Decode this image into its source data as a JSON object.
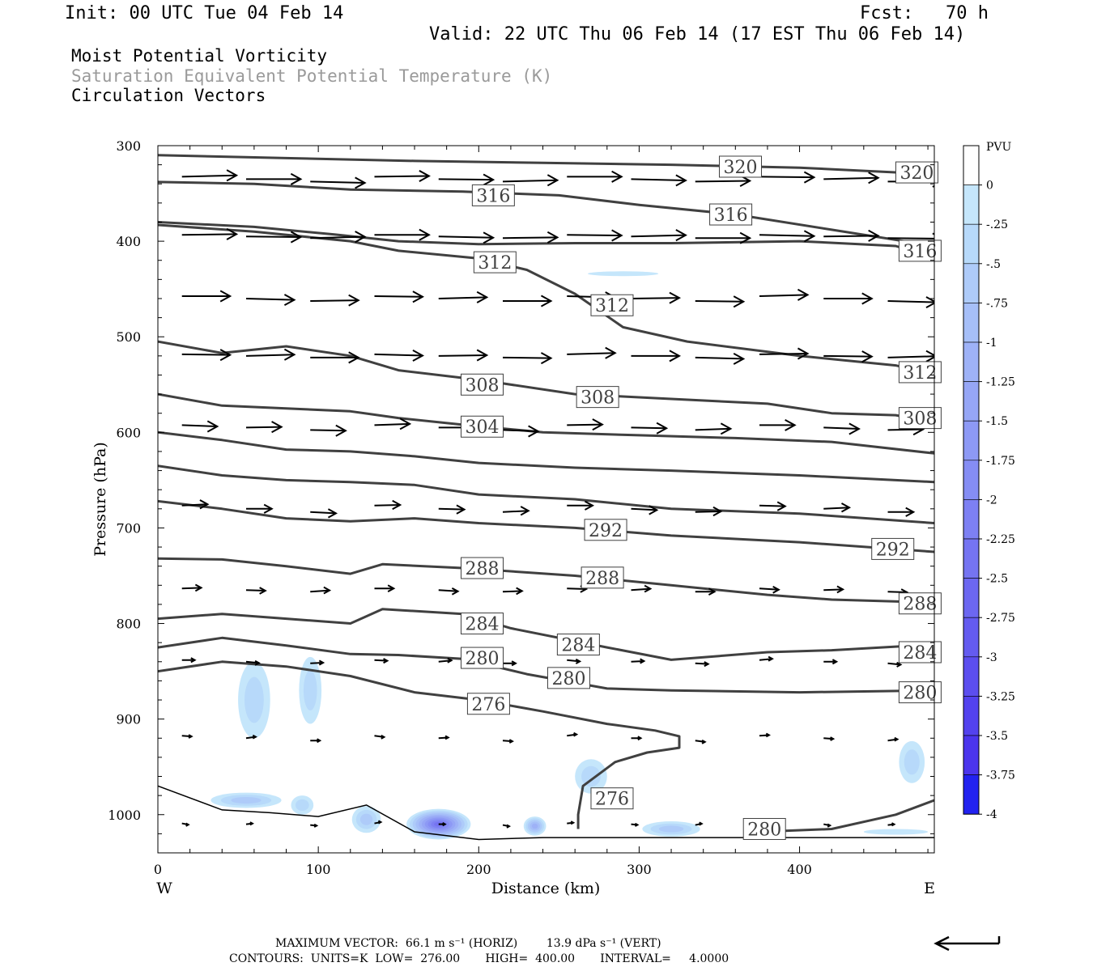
{
  "header": {
    "init": "Init: 00 UTC Tue 04 Feb 14",
    "fcst": "Fcst:   70 h",
    "valid": "Valid: 22 UTC Thu 06 Feb 14 (17 EST Thu 06 Feb 14)",
    "field1": "Moist Potential Vorticity",
    "field2": "Saturation Equivalent Potential Temperature (K)",
    "field3": "Circulation Vectors"
  },
  "axes": {
    "ylabel": "Pressure (hPa)",
    "xlabel": "Distance (km)",
    "west": "W",
    "east": "E"
  },
  "colorbar": {
    "unit": "PVU",
    "labels": [
      "0",
      "-.25",
      "-.5",
      "-.75",
      "-1",
      "-1.25",
      "-1.5",
      "-1.75",
      "-2",
      "-2.25",
      "-2.5",
      "-2.75",
      "-3",
      "-3.25",
      "-3.5",
      "-3.75",
      "-4"
    ],
    "colors": [
      "#ffffff",
      "#c5e6fb",
      "#b7d9fa",
      "#aecbf9",
      "#a6bff8",
      "#9eb2f7",
      "#96a6f6",
      "#8d99f5",
      "#858df4",
      "#7d80f3",
      "#7574f2",
      "#6c67f1",
      "#645bf0",
      "#5c4eef",
      "#5342ee",
      "#4b35ed",
      "#2222f0"
    ]
  },
  "footer": {
    "line1": "MAXIMUM VECTOR:  66.1 m s⁻¹ (HORIZ)        13.9 dPa s⁻¹ (VERT)",
    "line2": "CONTOURS:  UNITS=K  LOW=  276.00       HIGH=  400.00       INTERVAL=     4.0000"
  },
  "chart_data": {
    "type": "contour",
    "title": "Moist Potential Vorticity / Saturation Equivalent Potential Temperature (K) / Circulation Vectors",
    "xlabel": "Distance (km)",
    "ylabel": "Pressure (hPa)",
    "xlim": [
      0,
      484
    ],
    "ylim": [
      1040,
      300
    ],
    "x_ticks": [
      0,
      100,
      200,
      300,
      400
    ],
    "y_ticks": [
      300,
      400,
      500,
      600,
      700,
      800,
      900,
      1000
    ],
    "contour_units": "K",
    "contour_low": 276,
    "contour_high": 400,
    "contour_interval": 4,
    "isentropes": [
      {
        "theta": 320,
        "points": [
          [
            0,
            310
          ],
          [
            80,
            313
          ],
          [
            160,
            316
          ],
          [
            240,
            318
          ],
          [
            320,
            320
          ],
          [
            400,
            323
          ],
          [
            484,
            330
          ]
        ],
        "labels": [
          [
            350,
            322
          ],
          [
            460,
            328
          ]
        ]
      },
      {
        "theta": 316,
        "points": [
          [
            0,
            338
          ],
          [
            60,
            340
          ],
          [
            120,
            346
          ],
          [
            190,
            348
          ],
          [
            250,
            352
          ],
          [
            300,
            362
          ],
          [
            360,
            372
          ],
          [
            420,
            388
          ],
          [
            484,
            405
          ]
        ],
        "labels": [
          [
            196,
            352
          ],
          [
            344,
            372
          ]
        ]
      },
      {
        "theta": 316,
        "points": [
          [
            0,
            380
          ],
          [
            60,
            385
          ],
          [
            110,
            393
          ],
          [
            150,
            400
          ],
          [
            200,
            403
          ],
          [
            260,
            402
          ],
          [
            320,
            402
          ],
          [
            400,
            400
          ],
          [
            460,
            405
          ],
          [
            484,
            418
          ]
        ],
        "labels": [
          [
            462,
            410
          ]
        ]
      },
      {
        "theta": 312,
        "points": [
          [
            0,
            383
          ],
          [
            60,
            390
          ],
          [
            120,
            400
          ],
          [
            150,
            410
          ],
          [
            200,
            418
          ],
          [
            230,
            430
          ],
          [
            260,
            455
          ],
          [
            290,
            490
          ],
          [
            330,
            505
          ],
          [
            400,
            520
          ],
          [
            460,
            530
          ],
          [
            484,
            540
          ]
        ],
        "labels": [
          [
            197,
            422
          ],
          [
            270,
            467
          ],
          [
            462,
            537
          ]
        ]
      },
      {
        "theta": 308,
        "points": [
          [
            0,
            505
          ],
          [
            40,
            517
          ],
          [
            80,
            510
          ],
          [
            120,
            520
          ],
          [
            150,
            535
          ],
          [
            200,
            545
          ],
          [
            260,
            560
          ],
          [
            320,
            565
          ],
          [
            380,
            570
          ],
          [
            420,
            580
          ],
          [
            460,
            582
          ],
          [
            484,
            590
          ]
        ],
        "labels": [
          [
            189,
            550
          ],
          [
            261,
            563
          ],
          [
            462,
            585
          ]
        ]
      },
      {
        "theta": 304,
        "points": [
          [
            0,
            560
          ],
          [
            40,
            572
          ],
          [
            80,
            575
          ],
          [
            120,
            578
          ],
          [
            150,
            585
          ],
          [
            190,
            592
          ],
          [
            240,
            600
          ],
          [
            300,
            603
          ],
          [
            360,
            606
          ],
          [
            420,
            610
          ],
          [
            484,
            622
          ]
        ],
        "labels": [
          [
            189,
            594
          ]
        ]
      },
      {
        "theta": 300,
        "points": [
          [
            0,
            600
          ],
          [
            40,
            608
          ],
          [
            80,
            618
          ],
          [
            120,
            620
          ],
          [
            160,
            625
          ],
          [
            200,
            632
          ],
          [
            260,
            637
          ],
          [
            320,
            640
          ],
          [
            400,
            645
          ],
          [
            484,
            652
          ]
        ],
        "labels": []
      },
      {
        "theta": 296,
        "points": [
          [
            0,
            635
          ],
          [
            40,
            645
          ],
          [
            80,
            650
          ],
          [
            120,
            652
          ],
          [
            160,
            655
          ],
          [
            200,
            665
          ],
          [
            260,
            670
          ],
          [
            320,
            680
          ],
          [
            400,
            685
          ],
          [
            484,
            695
          ]
        ],
        "labels": []
      },
      {
        "theta": 292,
        "points": [
          [
            0,
            672
          ],
          [
            40,
            680
          ],
          [
            80,
            690
          ],
          [
            120,
            693
          ],
          [
            160,
            690
          ],
          [
            200,
            695
          ],
          [
            260,
            700
          ],
          [
            320,
            708
          ],
          [
            400,
            715
          ],
          [
            484,
            725
          ]
        ],
        "labels": [
          [
            266,
            702
          ],
          [
            445,
            722
          ]
        ]
      },
      {
        "theta": 288,
        "points": [
          [
            0,
            732
          ],
          [
            40,
            733
          ],
          [
            80,
            740
          ],
          [
            120,
            748
          ],
          [
            140,
            738
          ],
          [
            190,
            742
          ],
          [
            260,
            750
          ],
          [
            320,
            760
          ],
          [
            380,
            770
          ],
          [
            420,
            775
          ],
          [
            484,
            778
          ]
        ],
        "labels": [
          [
            189,
            742
          ],
          [
            264,
            752
          ],
          [
            462,
            779
          ]
        ]
      },
      {
        "theta": 284,
        "points": [
          [
            0,
            795
          ],
          [
            40,
            790
          ],
          [
            80,
            795
          ],
          [
            120,
            800
          ],
          [
            140,
            785
          ],
          [
            190,
            790
          ],
          [
            220,
            805
          ],
          [
            280,
            825
          ],
          [
            320,
            838
          ],
          [
            380,
            830
          ],
          [
            420,
            828
          ],
          [
            484,
            822
          ]
        ],
        "labels": [
          [
            189,
            800
          ],
          [
            249,
            822
          ],
          [
            462,
            830
          ]
        ]
      },
      {
        "theta": 280,
        "points": [
          [
            0,
            825
          ],
          [
            40,
            815
          ],
          [
            80,
            823
          ],
          [
            120,
            832
          ],
          [
            150,
            833
          ],
          [
            190,
            837
          ],
          [
            230,
            853
          ],
          [
            280,
            868
          ],
          [
            320,
            870
          ],
          [
            400,
            872
          ],
          [
            484,
            870
          ]
        ],
        "labels": [
          [
            189,
            836
          ],
          [
            243,
            857
          ],
          [
            462,
            872
          ]
        ]
      },
      {
        "theta": 276,
        "points": [
          [
            0,
            850
          ],
          [
            40,
            840
          ],
          [
            80,
            845
          ],
          [
            120,
            855
          ],
          [
            160,
            872
          ],
          [
            200,
            880
          ],
          [
            240,
            892
          ],
          [
            280,
            905
          ],
          [
            310,
            912
          ],
          [
            325,
            918
          ],
          [
            325,
            930
          ],
          [
            305,
            935
          ],
          [
            285,
            945
          ],
          [
            265,
            970
          ],
          [
            262,
            1000
          ],
          [
            262,
            1015
          ]
        ],
        "labels": [
          [
            193,
            884
          ],
          [
            270,
            983
          ]
        ]
      },
      {
        "theta": 280,
        "points": [
          [
            375,
            1018
          ],
          [
            420,
            1015
          ],
          [
            460,
            1000
          ],
          [
            484,
            985
          ]
        ],
        "labels": [
          [
            365,
            1015
          ]
        ]
      }
    ],
    "surface": [
      [
        0,
        970
      ],
      [
        40,
        995
      ],
      [
        70,
        998
      ],
      [
        100,
        1002
      ],
      [
        130,
        990
      ],
      [
        160,
        1018
      ],
      [
        200,
        1026
      ],
      [
        240,
        1024
      ],
      [
        300,
        1024
      ],
      [
        400,
        1024
      ],
      [
        484,
        1024
      ]
    ],
    "mpv_regions": [
      {
        "x": 60,
        "y": 880,
        "rx": 10,
        "ry": 40,
        "value": -0.5
      },
      {
        "x": 95,
        "y": 870,
        "rx": 7,
        "ry": 35,
        "value": -0.5
      },
      {
        "x": 270,
        "y": 960,
        "rx": 10,
        "ry": 18,
        "value": -0.5
      },
      {
        "x": 470,
        "y": 945,
        "rx": 8,
        "ry": 22,
        "value": -0.5
      },
      {
        "x": 290,
        "y": 434,
        "rx": 22,
        "ry": 2.5,
        "value": -0.25
      },
      {
        "x": 55,
        "y": 985,
        "rx": 22,
        "ry": 8,
        "value": -0.75
      },
      {
        "x": 90,
        "y": 990,
        "rx": 7,
        "ry": 10,
        "value": -0.5
      },
      {
        "x": 130,
        "y": 1005,
        "rx": 9,
        "ry": 14,
        "value": -0.75
      },
      {
        "x": 175,
        "y": 1010,
        "rx": 20,
        "ry": 16,
        "value": -2.5
      },
      {
        "x": 235,
        "y": 1012,
        "rx": 7,
        "ry": 10,
        "value": -1.25
      },
      {
        "x": 320,
        "y": 1015,
        "rx": 18,
        "ry": 8,
        "value": -0.75
      },
      {
        "x": 460,
        "y": 1018,
        "rx": 20,
        "ry": 3,
        "value": -0.25
      }
    ],
    "vector_rows": [
      {
        "p": 335,
        "len": 34,
        "dy": 3
      },
      {
        "p": 395,
        "len": 34,
        "dy": 2
      },
      {
        "p": 460,
        "len": 30,
        "dy": 3
      },
      {
        "p": 520,
        "len": 30,
        "dy": 2
      },
      {
        "p": 595,
        "len": 22,
        "dy": 3
      },
      {
        "p": 680,
        "len": 16,
        "dy": 4
      },
      {
        "p": 765,
        "len": 12,
        "dy": 2
      },
      {
        "p": 840,
        "len": 8,
        "dy": 2
      },
      {
        "p": 920,
        "len": 6,
        "dy": 3
      },
      {
        "p": 1010,
        "len": 4,
        "dy": 1
      }
    ],
    "vector_x": [
      15,
      55,
      95,
      135,
      175,
      215,
      255,
      295,
      335,
      375,
      415,
      455
    ]
  }
}
